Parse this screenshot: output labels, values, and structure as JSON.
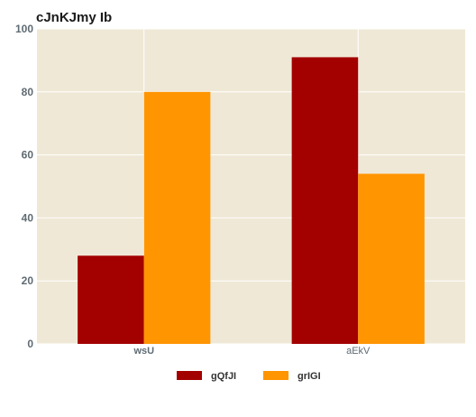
{
  "chart_data": {
    "type": "bar",
    "title": "cJnKJmy Ib",
    "categories": [
      "wsU",
      "aEkV"
    ],
    "series": [
      {
        "name": "gQfJI",
        "values": [
          28,
          91
        ],
        "color": "#a30000"
      },
      {
        "name": "grIGI",
        "values": [
          80,
          54
        ],
        "color": "#ff9500"
      }
    ],
    "xlabel": "",
    "ylabel": "",
    "ylim": [
      0,
      100
    ],
    "yticks": [
      0,
      20,
      40,
      60,
      80,
      100
    ],
    "grid": true,
    "legend": "bottom-center",
    "plot_background": "#efe8d6"
  }
}
